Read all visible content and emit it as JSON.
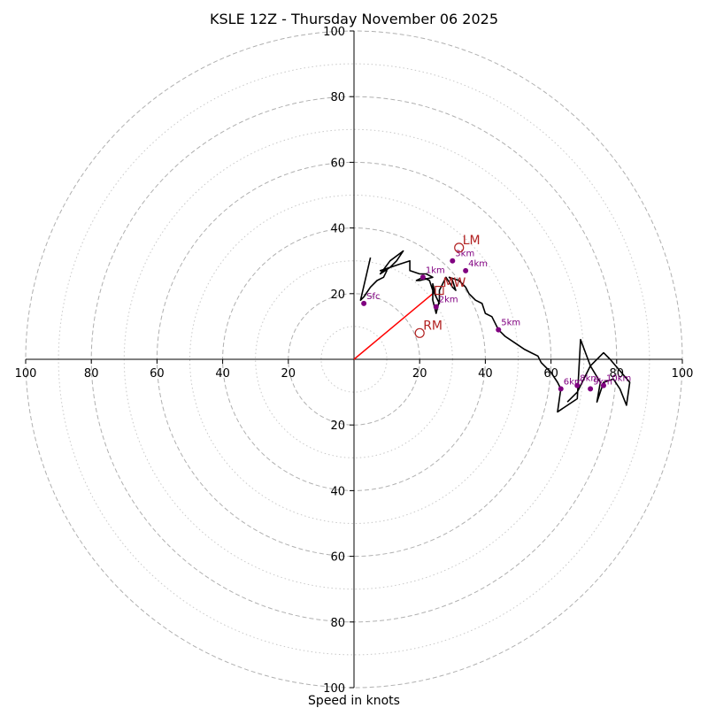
{
  "chart_data": {
    "type": "hodograph",
    "title": "KSLE 12Z - Thursday November 06 2025",
    "xlabel": "Speed in knots",
    "units": "knots",
    "range": [
      -100,
      100
    ],
    "major_rings": [
      20,
      40,
      60,
      80,
      100
    ],
    "minor_rings": [
      10,
      30,
      50,
      70,
      90
    ],
    "axis_ticks": {
      "x": [
        {
          "v": -100,
          "label": "100"
        },
        {
          "v": -80,
          "label": "80"
        },
        {
          "v": -60,
          "label": "60"
        },
        {
          "v": -40,
          "label": "40"
        },
        {
          "v": -20,
          "label": "20"
        },
        {
          "v": 20,
          "label": "20"
        },
        {
          "v": 40,
          "label": "40"
        },
        {
          "v": 60,
          "label": "60"
        },
        {
          "v": 80,
          "label": "80"
        },
        {
          "v": 100,
          "label": "100"
        }
      ],
      "y": [
        {
          "v": 100,
          "label": "100"
        },
        {
          "v": 80,
          "label": "80"
        },
        {
          "v": 60,
          "label": "60"
        },
        {
          "v": 40,
          "label": "40"
        },
        {
          "v": 20,
          "label": "20"
        },
        {
          "v": -20,
          "label": "20"
        },
        {
          "v": -40,
          "label": "40"
        },
        {
          "v": -60,
          "label": "60"
        },
        {
          "v": -80,
          "label": "80"
        },
        {
          "v": -100,
          "label": "100"
        }
      ]
    },
    "trace": [
      [
        5,
        31
      ],
      [
        2,
        18
      ],
      [
        3,
        19
      ],
      [
        5,
        22
      ],
      [
        7,
        24
      ],
      [
        9,
        25
      ],
      [
        10,
        27
      ],
      [
        8,
        27
      ],
      [
        11,
        28
      ],
      [
        13,
        30
      ],
      [
        15,
        33
      ],
      [
        11,
        30
      ],
      [
        8,
        26
      ],
      [
        11,
        28
      ],
      [
        14,
        29
      ],
      [
        17,
        30
      ],
      [
        17,
        27
      ],
      [
        20,
        26
      ],
      [
        22,
        26
      ],
      [
        24,
        25
      ],
      [
        20,
        24
      ],
      [
        19,
        24
      ],
      [
        21,
        25
      ],
      [
        23,
        24
      ],
      [
        24,
        21
      ],
      [
        25,
        19
      ],
      [
        26,
        17
      ],
      [
        25,
        19
      ],
      [
        24,
        23
      ],
      [
        24,
        18
      ],
      [
        25,
        14
      ],
      [
        26,
        18
      ],
      [
        26,
        21
      ],
      [
        27,
        23
      ],
      [
        28,
        25
      ],
      [
        30,
        22
      ],
      [
        31,
        21
      ],
      [
        30,
        24
      ],
      [
        29,
        25
      ],
      [
        32,
        24
      ],
      [
        34,
        22
      ],
      [
        35,
        20
      ],
      [
        37,
        18
      ],
      [
        39,
        17
      ],
      [
        40,
        14
      ],
      [
        42,
        13
      ],
      [
        43,
        11
      ],
      [
        44,
        9
      ],
      [
        46,
        7
      ],
      [
        49,
        5
      ],
      [
        52,
        3
      ],
      [
        54,
        2
      ],
      [
        56,
        1
      ],
      [
        57,
        -1
      ],
      [
        60,
        -4
      ],
      [
        62,
        -7
      ],
      [
        63,
        -9
      ],
      [
        62,
        -16
      ],
      [
        68,
        -12
      ],
      [
        69,
        6
      ],
      [
        72,
        -2
      ],
      [
        75,
        -7
      ],
      [
        74,
        -13
      ],
      [
        76,
        -7
      ],
      [
        79,
        -6
      ],
      [
        81,
        -9
      ],
      [
        83,
        -14
      ],
      [
        84,
        -7
      ],
      [
        78,
        0
      ],
      [
        76,
        2
      ],
      [
        72,
        -2
      ],
      [
        68,
        -10
      ],
      [
        65,
        -13
      ]
    ],
    "height_markers": [
      {
        "label": "Sfc",
        "u": 3,
        "v": 17
      },
      {
        "label": "1km",
        "u": 21,
        "v": 25
      },
      {
        "label": "2km",
        "u": 25,
        "v": 16
      },
      {
        "label": "3km",
        "u": 30,
        "v": 30
      },
      {
        "label": "4km",
        "u": 34,
        "v": 27
      },
      {
        "label": "5km",
        "u": 44,
        "v": 9
      },
      {
        "label": "6km",
        "u": 63,
        "v": -9
      },
      {
        "label": "8km",
        "u": 68,
        "v": -8
      },
      {
        "label": "9km",
        "u": 72,
        "v": -9
      },
      {
        "label": "10km",
        "u": 76,
        "v": -8
      }
    ],
    "storm_motion": [
      {
        "label": "LM",
        "u": 32,
        "v": 34,
        "marker": "circle"
      },
      {
        "label": "RM",
        "u": 20,
        "v": 8,
        "marker": "circle"
      },
      {
        "label": "MW",
        "u": 26,
        "v": 21,
        "marker": "square"
      }
    ],
    "storm_vector": {
      "from": [
        0,
        0
      ],
      "to": [
        24,
        20
      ]
    },
    "colors": {
      "trace": "#000000",
      "marker": "#800080",
      "storm": "#b22222",
      "vector": "#ff0000",
      "grid": "#b0b0b0",
      "axis": "#000000"
    }
  }
}
